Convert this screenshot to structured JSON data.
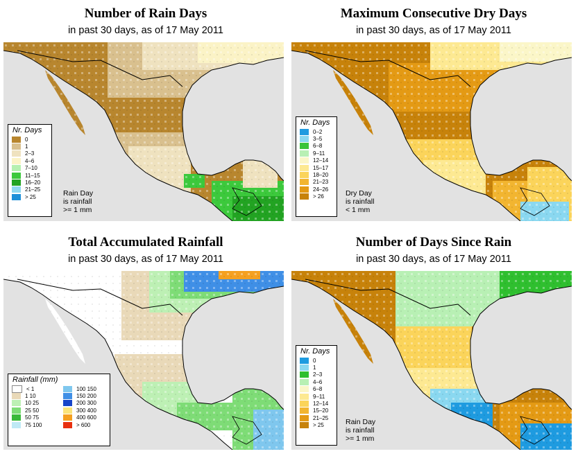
{
  "panels": {
    "rain_days": {
      "title": "Number of Rain Days",
      "subtitle": "in past 30 days, as of  17 May 2011",
      "legend_title": "Nr. Days",
      "legend": [
        {
          "label": "0",
          "color": "#b8862e"
        },
        {
          "label": "1",
          "color": "#d9c08e"
        },
        {
          "label": "2–3",
          "color": "#efe2bf"
        },
        {
          "label": "4–6",
          "color": "#fbf3c6"
        },
        {
          "label": "7–10",
          "color": "#b5f0b0"
        },
        {
          "label": "11–15",
          "color": "#3cc93c"
        },
        {
          "label": "16–20",
          "color": "#22a322"
        },
        {
          "label": "21–25",
          "color": "#8fd8ef"
        },
        {
          "label": "> 25",
          "color": "#1d8fd8"
        }
      ],
      "note": [
        "Rain Day",
        "is rainfall",
        ">= 1 mm"
      ]
    },
    "dry_days": {
      "title": "Maximum Consecutive Dry Days",
      "subtitle": "in past 30 days, as of  17 May 2011",
      "legend_title": "Nr. Days",
      "legend": [
        {
          "label": "0–2",
          "color": "#1e9be0"
        },
        {
          "label": "3–5",
          "color": "#8ad8f0"
        },
        {
          "label": "6–8",
          "color": "#3ac43a"
        },
        {
          "label": "9–11",
          "color": "#b8f0b4"
        },
        {
          "label": "12–14",
          "color": "#fbf6c8"
        },
        {
          "label": "15–17",
          "color": "#fde992"
        },
        {
          "label": "18–20",
          "color": "#fbd45a"
        },
        {
          "label": "21–23",
          "color": "#f2b530"
        },
        {
          "label": "24–26",
          "color": "#e49a14"
        },
        {
          "label": "> 26",
          "color": "#c7820a"
        }
      ],
      "note": [
        "Dry Day",
        "is rainfall",
        "< 1 mm"
      ]
    },
    "rainfall": {
      "title": "Total Accumulated Rainfall",
      "subtitle": "in past 30 days, as of  17 May 2011",
      "legend_title": "Rainfall (mm)",
      "legend_left": [
        {
          "label": "< 1",
          "color": "#ffffff"
        },
        {
          "label": "1    10",
          "color": "#e9d9b8"
        },
        {
          "label": "10    25",
          "color": "#bdf0b4"
        },
        {
          "label": "25    50",
          "color": "#7edc76"
        },
        {
          "label": "50    75",
          "color": "#39b939"
        },
        {
          "label": "75  100",
          "color": "#bfe9f5"
        }
      ],
      "legend_right": [
        {
          "label": "100  150",
          "color": "#7fc7ee"
        },
        {
          "label": "150  200",
          "color": "#3f8fe6"
        },
        {
          "label": "200  300",
          "color": "#1846c9"
        },
        {
          "label": "300  400",
          "color": "#fbe47a"
        },
        {
          "label": "400  600",
          "color": "#f5a020"
        },
        {
          "label": "> 600",
          "color": "#e83010"
        }
      ]
    },
    "since_rain": {
      "title": "Number of Days Since Rain",
      "subtitle": "in past 30 days, as of  17 May 2011",
      "legend_title": "Nr. Days",
      "legend": [
        {
          "label": "0",
          "color": "#1e9be0"
        },
        {
          "label": "1",
          "color": "#8ad8f0"
        },
        {
          "label": "2–3",
          "color": "#2fbf2f"
        },
        {
          "label": "4–6",
          "color": "#b8f0b4"
        },
        {
          "label": "6–8",
          "color": "#fbf6c8"
        },
        {
          "label": "9–11",
          "color": "#fde992"
        },
        {
          "label": "12–14",
          "color": "#fbd45a"
        },
        {
          "label": "15–20",
          "color": "#f2b530"
        },
        {
          "label": "21–25",
          "color": "#e49a14"
        },
        {
          "label": "> 25",
          "color": "#c7820a"
        }
      ],
      "note": [
        "Rain Day",
        "is rainfall",
        ">= 1 mm"
      ]
    }
  },
  "colors": {
    "ocean": "#e2e2e2",
    "border": "#000000"
  }
}
